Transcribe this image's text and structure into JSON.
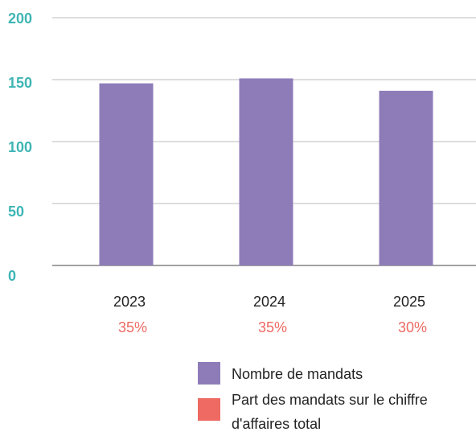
{
  "chart_data": {
    "type": "bar",
    "categories": [
      "2023",
      "2024",
      "2025"
    ],
    "series": [
      {
        "name": "Nombre de mandats",
        "color": "#8e7cb9",
        "values": [
          147,
          151,
          141
        ]
      },
      {
        "name": "Part des mandats sur le chiffre d'affaires total",
        "color": "#ee6a62",
        "values": [
          35,
          35,
          30
        ],
        "value_labels": [
          "35%",
          "35%",
          "30%"
        ]
      }
    ],
    "ylim": [
      0,
      200
    ],
    "yticks": [
      0,
      50,
      100,
      150,
      200
    ],
    "grid": true,
    "tick_color": "#3fb5b5"
  }
}
